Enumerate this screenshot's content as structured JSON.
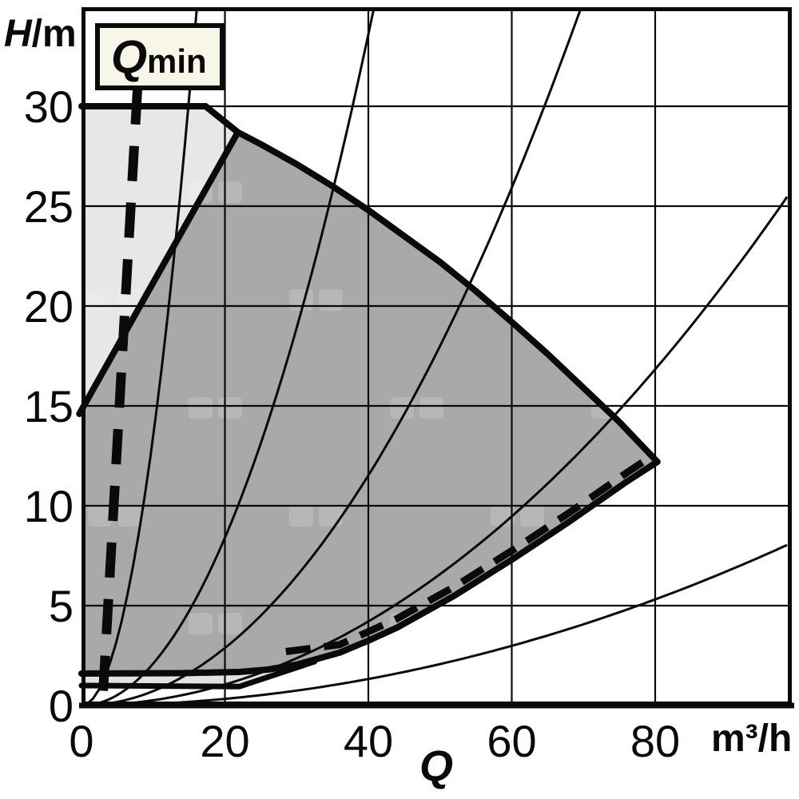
{
  "labels": {
    "y_axis_var": "H",
    "y_axis_unit": "/m",
    "x_axis_var": "Q",
    "x_axis_unit": "m³/h",
    "annotation_var": "Q",
    "annotation_sub": "min"
  },
  "chart_data": {
    "type": "area",
    "title": "",
    "xlabel": "Q",
    "x_unit": "m³/h",
    "ylabel": "H/m",
    "xlim": [
      0,
      99.0
    ],
    "ylim": [
      0,
      34.9
    ],
    "x_ticks": [
      0,
      20,
      40,
      60,
      80
    ],
    "y_ticks": [
      0,
      5,
      10,
      15,
      20,
      25,
      30
    ],
    "grid": true,
    "annotation": "Qmin",
    "regions": {
      "h30_segment": [
        [
          0,
          30
        ],
        [
          17.3,
          30
        ]
      ],
      "envelope_top_curve": [
        [
          17.3,
          30
        ],
        [
          21.8,
          28.7
        ],
        [
          25,
          28.1
        ],
        [
          30,
          27.1
        ],
        [
          35,
          26.0
        ],
        [
          40,
          24.8
        ],
        [
          45,
          23.5
        ],
        [
          50,
          22.2
        ],
        [
          55,
          20.75
        ],
        [
          60,
          19.2
        ],
        [
          65,
          17.6
        ],
        [
          70,
          15.9
        ],
        [
          75,
          14.2
        ],
        [
          80.3,
          12.2
        ]
      ],
      "left_boundary": [
        [
          -0.3,
          14.6
        ],
        [
          21.8,
          28.7
        ]
      ],
      "envelope_bottom_curve": [
        [
          0,
          1.6
        ],
        [
          14,
          1.62
        ],
        [
          22,
          1.68
        ],
        [
          26,
          1.8
        ],
        [
          30,
          2.05
        ],
        [
          33,
          2.35
        ],
        [
          36,
          2.65
        ],
        [
          40,
          3.25
        ],
        [
          44,
          3.9
        ],
        [
          48,
          4.7
        ],
        [
          52,
          5.5
        ],
        [
          56,
          6.4
        ],
        [
          60,
          7.3
        ],
        [
          64,
          8.25
        ],
        [
          68,
          9.2
        ],
        [
          72,
          10.2
        ],
        [
          76,
          11.2
        ],
        [
          80.3,
          12.2
        ]
      ],
      "upper_light_wedge": [
        [
          0,
          30
        ],
        [
          17.3,
          30
        ],
        [
          21.8,
          28.7
        ],
        [
          0,
          14.8
        ]
      ],
      "lower_strip_top": [
        [
          0,
          1.6
        ],
        [
          14,
          1.62
        ],
        [
          22,
          1.68
        ],
        [
          26,
          1.8
        ],
        [
          30,
          2.05
        ],
        [
          33,
          2.35
        ]
      ],
      "lower_strip_bottom": [
        [
          0,
          1.0
        ],
        [
          22,
          0.95
        ],
        [
          32.5,
          2.2
        ]
      ]
    },
    "qmin_dashed_line": [
      [
        7.8,
        30.85
      ],
      [
        3.0,
        0.55
      ]
    ],
    "lower_dashed_line": [
      [
        28.5,
        2.7
      ],
      [
        36,
        3.05
      ],
      [
        44,
        4.35
      ],
      [
        52,
        5.95
      ],
      [
        60,
        7.75
      ],
      [
        68,
        9.65
      ],
      [
        76,
        11.65
      ],
      [
        79.8,
        12.55
      ]
    ],
    "system_curve_coefficients": [
      0.135,
      0.021,
      0.0072,
      0.00263,
      0.00083
    ],
    "colors": {
      "light_region": "#e7e7e7",
      "strip_region": "#e2e2e2",
      "dark_region": "#a9a9a9",
      "line": "#0a0a0a",
      "label_box_bg": "#f8f5e9",
      "watermark": "#ffffff"
    }
  }
}
